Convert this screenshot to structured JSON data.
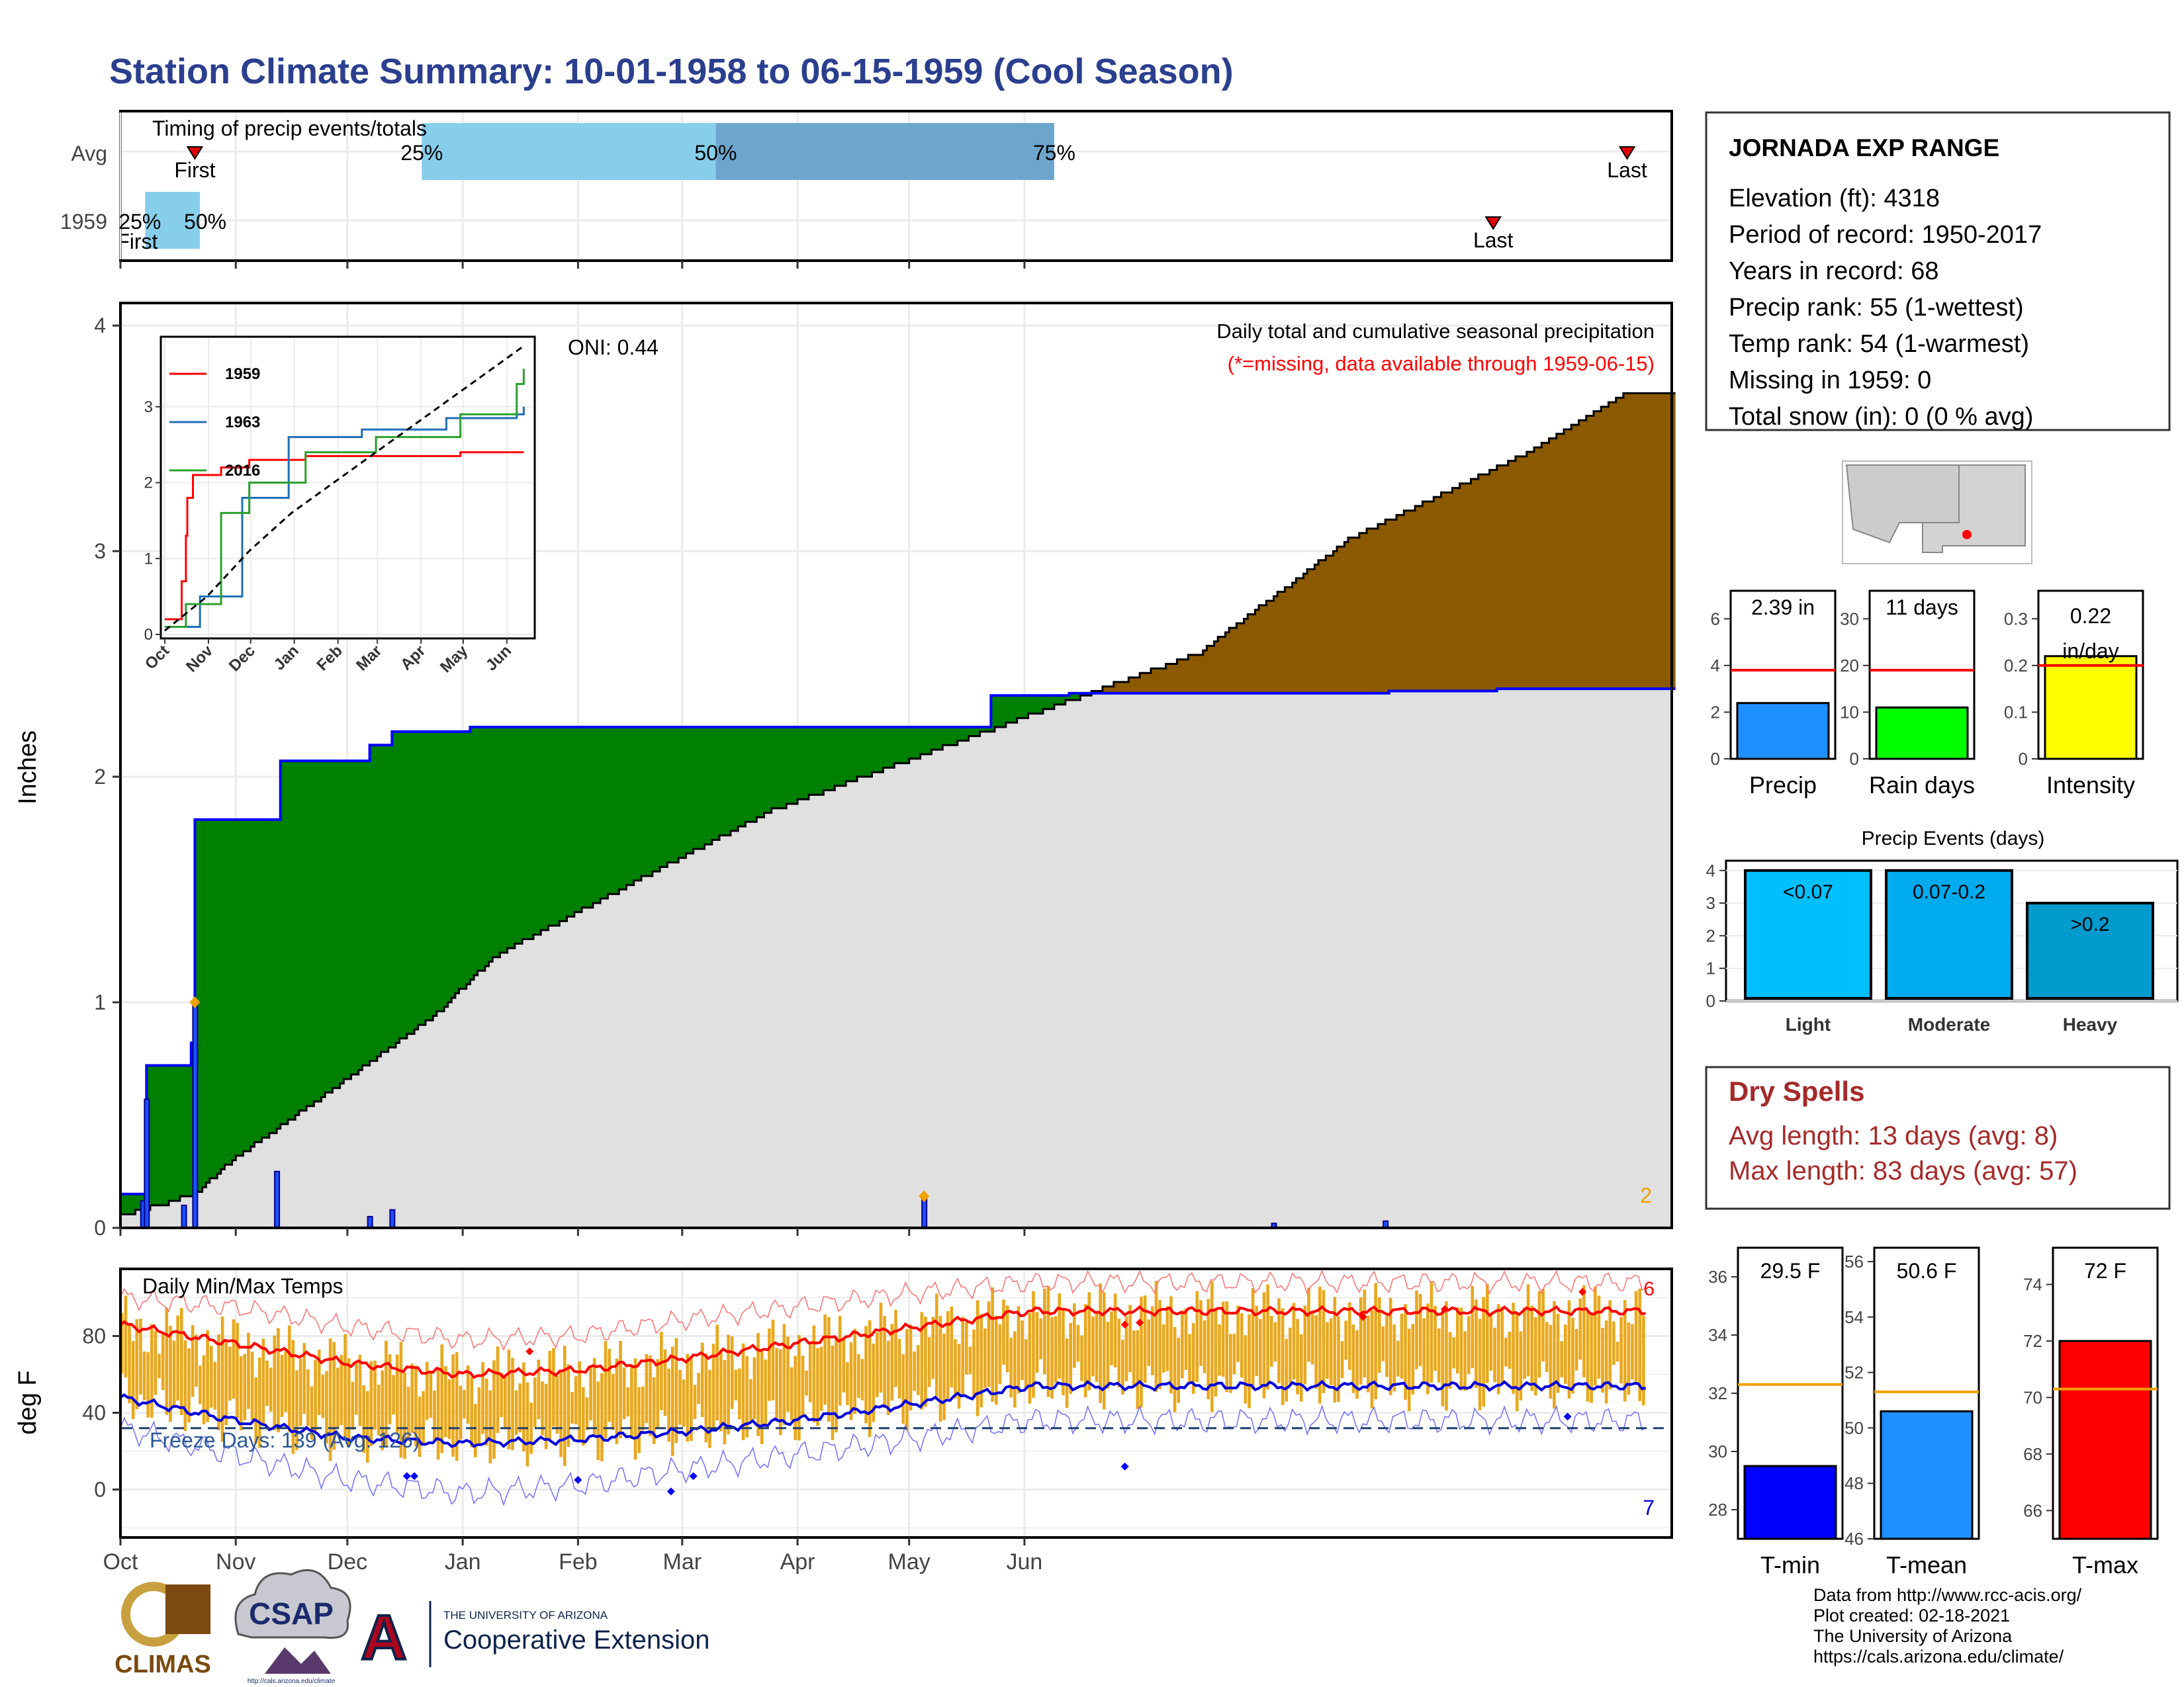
{
  "title": "Station Climate Summary: 10-01-1958 to 06-15-1959 (Cool Season)",
  "colors": {
    "title": "#2b3f8f",
    "current_fill": "#8b5a00",
    "surplus_fill": "#008000",
    "avg_fill": "#e0e0e0",
    "avg_line": "#0000ff",
    "event_bar": "#1e4fff",
    "tmax_bar": "#e8a81e",
    "dry_spell": "#a52a2a",
    "missing": "#ff0000"
  },
  "timing": {
    "label": "Timing of precip events/totals",
    "rows": [
      "Avg",
      "1959"
    ],
    "first_label": "First",
    "last_label": "Last",
    "avg": {
      "first_day": 20,
      "p25_day": 81,
      "p50_day": 160,
      "p75_day": 251,
      "last_day": 405
    },
    "y1959": {
      "first_day": 7,
      "p25_day": 7,
      "p50_day": 21,
      "p75_day": 21,
      "last_day": 369
    },
    "pct_labels": [
      "25%",
      "50%",
      "75%"
    ]
  },
  "month_labels": [
    "Oct",
    "Nov",
    "Dec",
    "Jan",
    "Feb",
    "Mar",
    "Apr",
    "May",
    "Jun"
  ],
  "chart_data": [
    {
      "type": "area",
      "name": "precip",
      "ylabel": "Inches",
      "ylim": [
        0,
        4.1
      ],
      "yticks": [
        0,
        1,
        2,
        3,
        4
      ],
      "caption": "Daily total and cumulative seasonal precipitation",
      "missing_note": "(*=missing, data available through 1959-06-15)",
      "oni": "ONI: 0.44",
      "missing_count": "2",
      "avg_cumulative_x": [
        0,
        20,
        30,
        60,
        85,
        100,
        140,
        175,
        290,
        330,
        380,
        405
      ],
      "avg_cumulative_y": [
        0.05,
        0.15,
        0.3,
        0.65,
        0.95,
        1.2,
        1.55,
        1.85,
        2.55,
        3.05,
        3.45,
        3.7
      ],
      "cumulative_1959_x": [
        0,
        6,
        7,
        17,
        19,
        20,
        42,
        43,
        66,
        67,
        72,
        73,
        93,
        94,
        130,
        131,
        233,
        234,
        235,
        254,
        255,
        340,
        341,
        370,
        405
      ],
      "cumulative_1959_y": [
        0.15,
        0.15,
        0.72,
        0.72,
        0.82,
        1.81,
        1.81,
        2.07,
        2.07,
        2.14,
        2.14,
        2.2,
        2.2,
        2.22,
        2.22,
        2.22,
        2.22,
        2.36,
        2.36,
        2.36,
        2.37,
        2.37,
        2.38,
        2.39,
        2.39
      ],
      "daily_x": [
        6,
        7,
        17,
        20,
        42,
        67,
        73,
        216,
        310,
        340
      ],
      "daily_y": [
        0.12,
        0.57,
        0.1,
        1.0,
        0.25,
        0.05,
        0.08,
        0.14,
        0.02,
        0.03
      ]
    },
    {
      "type": "line",
      "name": "inset",
      "categories": [
        "Oct",
        "Nov",
        "Dec",
        "Jan",
        "Feb",
        "Mar",
        "Apr",
        "May",
        "Jun"
      ],
      "ylim": [
        0,
        3.8
      ],
      "yticks": [
        0,
        1,
        2,
        3
      ],
      "series": [
        {
          "name": "1959",
          "color": "#ff0000",
          "x": [
            0,
            12,
            15,
            16,
            20,
            40,
            60,
            100,
            210,
            255
          ],
          "y": [
            0.2,
            0.7,
            1.3,
            1.8,
            2.1,
            2.2,
            2.3,
            2.35,
            2.4,
            2.4
          ]
        },
        {
          "name": "1963",
          "color": "#1f6fb5",
          "x": [
            0,
            25,
            55,
            88,
            140,
            200,
            250,
            255
          ],
          "y": [
            0.1,
            0.5,
            1.8,
            2.6,
            2.7,
            2.85,
            2.9,
            3.0
          ]
        },
        {
          "name": "2016",
          "color": "#2ca02c",
          "x": [
            0,
            15,
            40,
            60,
            100,
            150,
            210,
            250,
            255
          ],
          "y": [
            0.1,
            0.4,
            1.6,
            2.0,
            2.4,
            2.6,
            2.9,
            3.3,
            3.5
          ]
        },
        {
          "name": "",
          "color": "#000000",
          "x": [
            0,
            30,
            60,
            90,
            120,
            150,
            180,
            210,
            240,
            255
          ],
          "y": [
            0.05,
            0.5,
            1.1,
            1.6,
            2.0,
            2.4,
            2.8,
            3.2,
            3.6,
            3.8
          ]
        }
      ]
    },
    {
      "type": "bar",
      "name": "daily-temps",
      "title": "Daily Min/Max Temps",
      "ylabel": "deg F",
      "ylim": [
        -25,
        115
      ],
      "yticks": [
        0,
        40,
        80
      ],
      "freeze_label": "Freeze Days: 139 (Avg: 126)",
      "freeze_line": 32,
      "record_high_count": "6",
      "record_low_count": "7",
      "avg_max_x": [
        0,
        31,
        61,
        92,
        122,
        150,
        181,
        211,
        245
      ],
      "avg_max_y": [
        86,
        76,
        66,
        60,
        62,
        68,
        76,
        84,
        93
      ],
      "avg_min_x": [
        0,
        31,
        61,
        92,
        122,
        150,
        181,
        211,
        245
      ],
      "avg_min_y": [
        48,
        36,
        27,
        24,
        26,
        30,
        36,
        44,
        54
      ],
      "rec_high_x": [
        0,
        31,
        61,
        92,
        122,
        150,
        181,
        211,
        245
      ],
      "rec_high_y": [
        100,
        95,
        85,
        78,
        80,
        88,
        95,
        102,
        108
      ],
      "rec_low_x": [
        0,
        31,
        61,
        92,
        122,
        150,
        181,
        211,
        245
      ],
      "rec_low_y": [
        32,
        18,
        5,
        -2,
        2,
        10,
        18,
        26,
        36
      ]
    },
    {
      "type": "bar",
      "name": "summary-bars",
      "groups": [
        {
          "label": "Precip",
          "value": 2.39,
          "value_label": "2.39 in",
          "avg": 3.8,
          "ylim": [
            0,
            7.2
          ],
          "yticks": [
            0,
            2,
            4,
            6
          ],
          "color": "#1e90ff"
        },
        {
          "label": "Rain days",
          "value": 11,
          "value_label": "11 days",
          "avg": 19,
          "ylim": [
            0,
            36
          ],
          "yticks": [
            0,
            10,
            20,
            30
          ],
          "color": "#00ff00"
        },
        {
          "label": "Intensity",
          "value": 0.22,
          "value_label": "0.22 in/day",
          "avg": 0.2,
          "ylim": [
            0,
            0.36
          ],
          "yticks": [
            0.0,
            0.1,
            0.2,
            0.3
          ],
          "color": "#ffff00"
        }
      ]
    },
    {
      "type": "bar",
      "name": "precip-events",
      "title": "Precip Events (days)",
      "categories": [
        "Light",
        "Moderate",
        "Heavy"
      ],
      "bar_labels": [
        "<0.07",
        "0.07-0.2",
        ">0.2"
      ],
      "values": [
        4,
        4,
        3
      ],
      "colors": [
        "#00bfff",
        "#00aaee",
        "#009acd"
      ],
      "ylim": [
        0,
        4.3
      ],
      "yticks": [
        0,
        1,
        2,
        3,
        4
      ]
    },
    {
      "type": "bar",
      "name": "temp-summary",
      "groups": [
        {
          "label": "T-min",
          "value": 29.5,
          "value_label": "29.5 F",
          "avg": 32.3,
          "ylim": [
            27,
            37
          ],
          "yticks": [
            28,
            30,
            32,
            34,
            36
          ],
          "color": "#0000ff"
        },
        {
          "label": "T-mean",
          "value": 50.6,
          "value_label": "50.6 F",
          "avg": 51.3,
          "ylim": [
            46,
            56.5
          ],
          "yticks": [
            46,
            48,
            50,
            52,
            54,
            56
          ],
          "color": "#1e90ff"
        },
        {
          "label": "T-max",
          "value": 72,
          "value_label": "72 F",
          "avg": 70.3,
          "ylim": [
            65,
            75.3
          ],
          "yticks": [
            66,
            68,
            70,
            72,
            74
          ],
          "color": "#ff0000"
        }
      ]
    }
  ],
  "station": {
    "name": "JORNADA EXP RANGE",
    "lines": [
      "Elevation (ft): 4318",
      "Period of record: 1950-2017",
      "Years in record: 68",
      "Precip rank: 55 (1-wettest)",
      "Temp rank: 54 (1-warmest)",
      "Missing in 1959: 0",
      "Total snow (in): 0 (0 % avg)"
    ]
  },
  "dry_spells": {
    "title": "Dry Spells",
    "avg": "Avg length: 13 days (avg: 8)",
    "max": "Max length: 83 days (avg: 57)"
  },
  "footer": {
    "lines": [
      "Data from http://www.rcc-acis.org/",
      "Plot created: 02-18-2021",
      "The University of Arizona",
      "https://cals.arizona.edu/climate/"
    ],
    "logos": {
      "climas": "CLIMAS",
      "csap": "CSAP",
      "csap_url": "http://cals.arizona.edu/climate",
      "ua_letter": "A",
      "ua_small": "THE UNIVERSITY OF ARIZONA",
      "ua_ext": "Cooperative Extension"
    }
  }
}
